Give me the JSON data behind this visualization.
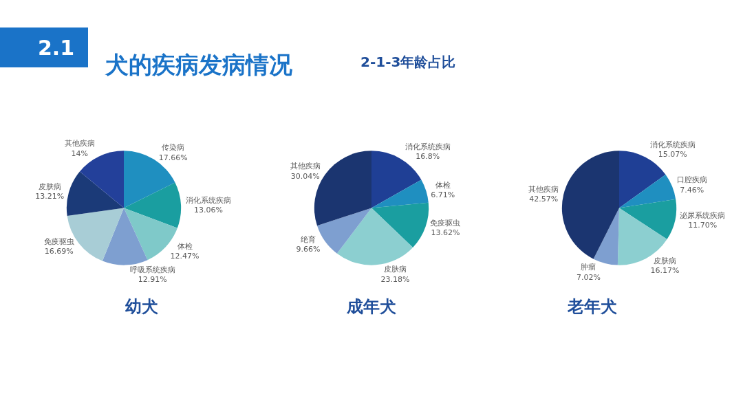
{
  "chart_data": [
    {
      "type": "other",
      "title": "犬的疾病发病情况",
      "subtitle": "2-1-3年龄占比",
      "annotations": [
        "2.1"
      ]
    },
    {
      "type": "pie",
      "title": "幼犬",
      "categories": [
        "传染病",
        "消化系统疾病",
        "体检",
        "呼吸系统疾病",
        "免疫驱虫",
        "皮肤病",
        "其他疾病"
      ],
      "values": [
        17.66,
        13.06,
        12.47,
        12.91,
        16.69,
        13.21,
        14
      ],
      "value_labels": [
        "17.66%",
        "13.06%",
        "12.47%",
        "12.91%",
        "16.69%",
        "13.21%",
        "14%"
      ],
      "colors": [
        "#1f8fc0",
        "#1a9ea0",
        "#7fc9c9",
        "#7e9fd0",
        "#a8cdd6",
        "#1b3a78",
        "#23409a"
      ]
    },
    {
      "type": "pie",
      "title": "成年犬",
      "categories": [
        "消化系统疾病",
        "体检",
        "免疫驱虫",
        "皮肤病",
        "绝育",
        "其他疾病"
      ],
      "values": [
        16.8,
        6.71,
        13.62,
        23.18,
        9.66,
        30.04
      ],
      "value_labels": [
        "16.8%",
        "6.71%",
        "13.62%",
        "23.18%",
        "9.66%",
        "30.04%"
      ],
      "colors": [
        "#1f3f95",
        "#1f8fc0",
        "#1a9ea0",
        "#8ccfd0",
        "#7e9fd0",
        "#1b3570"
      ]
    },
    {
      "type": "pie",
      "title": "老年犬",
      "categories": [
        "消化系统疾病",
        "口腔疾病",
        "泌尿系统疾病",
        "皮肤病",
        "肿瘤",
        "其他疾病"
      ],
      "values": [
        15.07,
        7.46,
        11.7,
        16.17,
        7.02,
        42.57
      ],
      "value_labels": [
        "15.07%",
        "7.46%",
        "11.70%",
        "16.17%",
        "7.02%",
        "42.57%"
      ],
      "colors": [
        "#1f3f95",
        "#1f8fc0",
        "#1a9ea0",
        "#8ccfd0",
        "#7e9fd0",
        "#1b3570"
      ]
    }
  ]
}
